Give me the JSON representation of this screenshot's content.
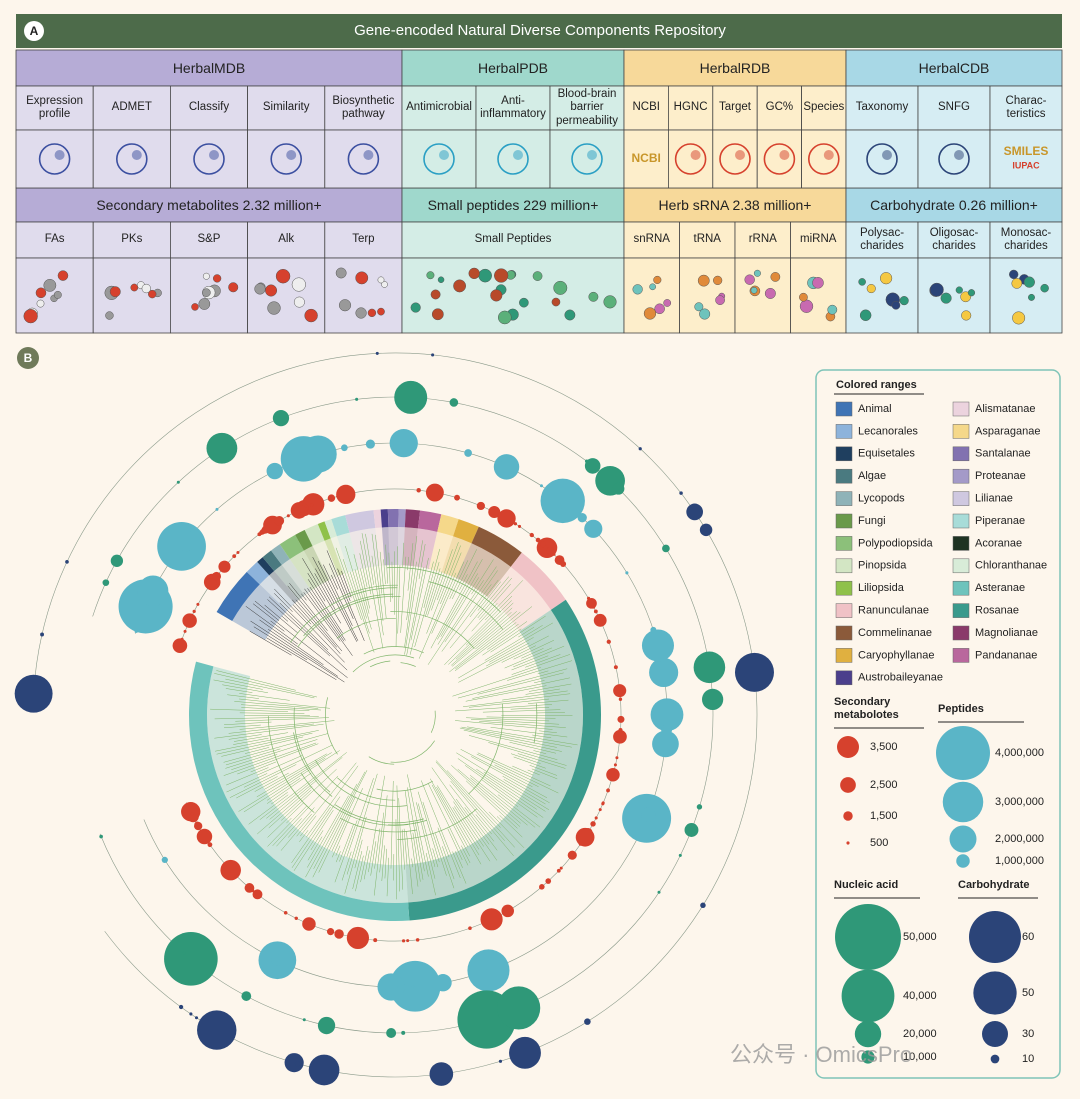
{
  "panel_a": {
    "label": "A",
    "title": "Gene-encoded Natural Diverse Components Repository",
    "databases": [
      {
        "name": "HerbalMDB",
        "tools": [
          {
            "label": "Expression\nprofile"
          },
          {
            "label": "ADMET"
          },
          {
            "label": "Classify"
          },
          {
            "label": "Similarity"
          },
          {
            "label": "Biosynthetic\npathway"
          }
        ],
        "stat": "Secondary metabolites 2.32 million+",
        "components": [
          "FAs",
          "PKs",
          "S&P",
          "Alk",
          "Terp"
        ]
      },
      {
        "name": "HerbalPDB",
        "tools": [
          {
            "label": "Antimicrobial"
          },
          {
            "label": "Anti-\ninflammatory"
          },
          {
            "label": "Blood-brain\nbarrier\npermeability"
          }
        ],
        "stat": "Small peptides 229 million+",
        "components": [
          "Small Peptides"
        ]
      },
      {
        "name": "HerbalRDB",
        "tools": [
          {
            "label": "NCBI",
            "icon_text": [
              "NCBI"
            ]
          },
          {
            "label": "HGNC"
          },
          {
            "label": "Target"
          },
          {
            "label": "GC%"
          },
          {
            "label": "Species"
          }
        ],
        "stat": "Herb sRNA 2.38 million+",
        "components": [
          "snRNA",
          "tRNA",
          "rRNA",
          "miRNA"
        ]
      },
      {
        "name": "HerbalCDB",
        "tools": [
          {
            "label": "Taxonomy"
          },
          {
            "label": "SNFG"
          },
          {
            "label": "Charac-\nteristics",
            "icon_text": [
              "SMILES",
              "IUPAC"
            ]
          }
        ],
        "stat": "Carbohydrate 0.26 million+",
        "components": [
          "Polysac-\ncharides",
          "Oligosac-\ncharides",
          "Monosac-\ncharides"
        ]
      }
    ]
  },
  "panel_b": {
    "label": "B",
    "colored_ranges": {
      "title": "Colored ranges",
      "items": [
        {
          "name": "Animal",
          "color": "#3f74b5"
        },
        {
          "name": "Lecanorales",
          "color": "#8db3db"
        },
        {
          "name": "Equisetales",
          "color": "#1f3f5f"
        },
        {
          "name": "Algae",
          "color": "#4a7a80"
        },
        {
          "name": "Lycopods",
          "color": "#8fb3b8"
        },
        {
          "name": "Fungi",
          "color": "#6a9a4a"
        },
        {
          "name": "Polypodiopsida",
          "color": "#8cc07a"
        },
        {
          "name": "Pinopsida",
          "color": "#d3e6c4"
        },
        {
          "name": "Liliopsida",
          "color": "#8fc14a"
        },
        {
          "name": "Ranunculanae",
          "color": "#f0c2c6"
        },
        {
          "name": "Commelinanae",
          "color": "#8b5a3a"
        },
        {
          "name": "Caryophyllanae",
          "color": "#e0b040"
        },
        {
          "name": "Austrobaileyanae",
          "color": "#4b3f8c"
        },
        {
          "name": "Alismatanae",
          "color": "#ecd3de"
        },
        {
          "name": "Asparaganae",
          "color": "#f5d88a"
        },
        {
          "name": "Santalanae",
          "color": "#8272b0"
        },
        {
          "name": "Proteanae",
          "color": "#a49ac8"
        },
        {
          "name": "Lilianae",
          "color": "#cfc8e0"
        },
        {
          "name": "Piperanae",
          "color": "#a8dcd8"
        },
        {
          "name": "Acoranae",
          "color": "#1e3322"
        },
        {
          "name": "Chloranthanae",
          "color": "#d8ecd8"
        },
        {
          "name": "Asteranae",
          "color": "#6ec3bc"
        },
        {
          "name": "Rosanae",
          "color": "#3a9a8c"
        },
        {
          "name": "Magnolianae",
          "color": "#8a3a6a"
        },
        {
          "name": "Pandananae",
          "color": "#b9679d"
        }
      ]
    },
    "sizes": [
      {
        "title": "Secondary\nmetabolotes",
        "color": "#d6412d",
        "entries": [
          {
            "value": 3500,
            "label": "3,500"
          },
          {
            "value": 2500,
            "label": "2,500"
          },
          {
            "value": 1500,
            "label": "1,500"
          },
          {
            "value": 500,
            "label": "500"
          }
        ]
      },
      {
        "title": "Peptides",
        "color": "#5ab5c7",
        "entries": [
          {
            "value": 4000000,
            "label": "4,000,000"
          },
          {
            "value": 3000000,
            "label": "3,000,000"
          },
          {
            "value": 2000000,
            "label": "2,000,000"
          },
          {
            "value": 1000000,
            "label": "1,000,000"
          }
        ]
      },
      {
        "title": "Nucleic acid",
        "color": "#2f9878",
        "entries": [
          {
            "value": 50000,
            "label": "50,000"
          },
          {
            "value": 40000,
            "label": "40,000"
          },
          {
            "value": 20000,
            "label": "20,000"
          },
          {
            "value": 10000,
            "label": "10,000"
          }
        ]
      },
      {
        "title": "Carbohydrate",
        "color": "#2b4478",
        "entries": [
          {
            "value": 60,
            "label": "60"
          },
          {
            "value": 50,
            "label": "50"
          },
          {
            "value": 30,
            "label": "30"
          },
          {
            "value": 10,
            "label": "10"
          }
        ]
      }
    ]
  },
  "watermark": "公众号 · OmicsPro"
}
